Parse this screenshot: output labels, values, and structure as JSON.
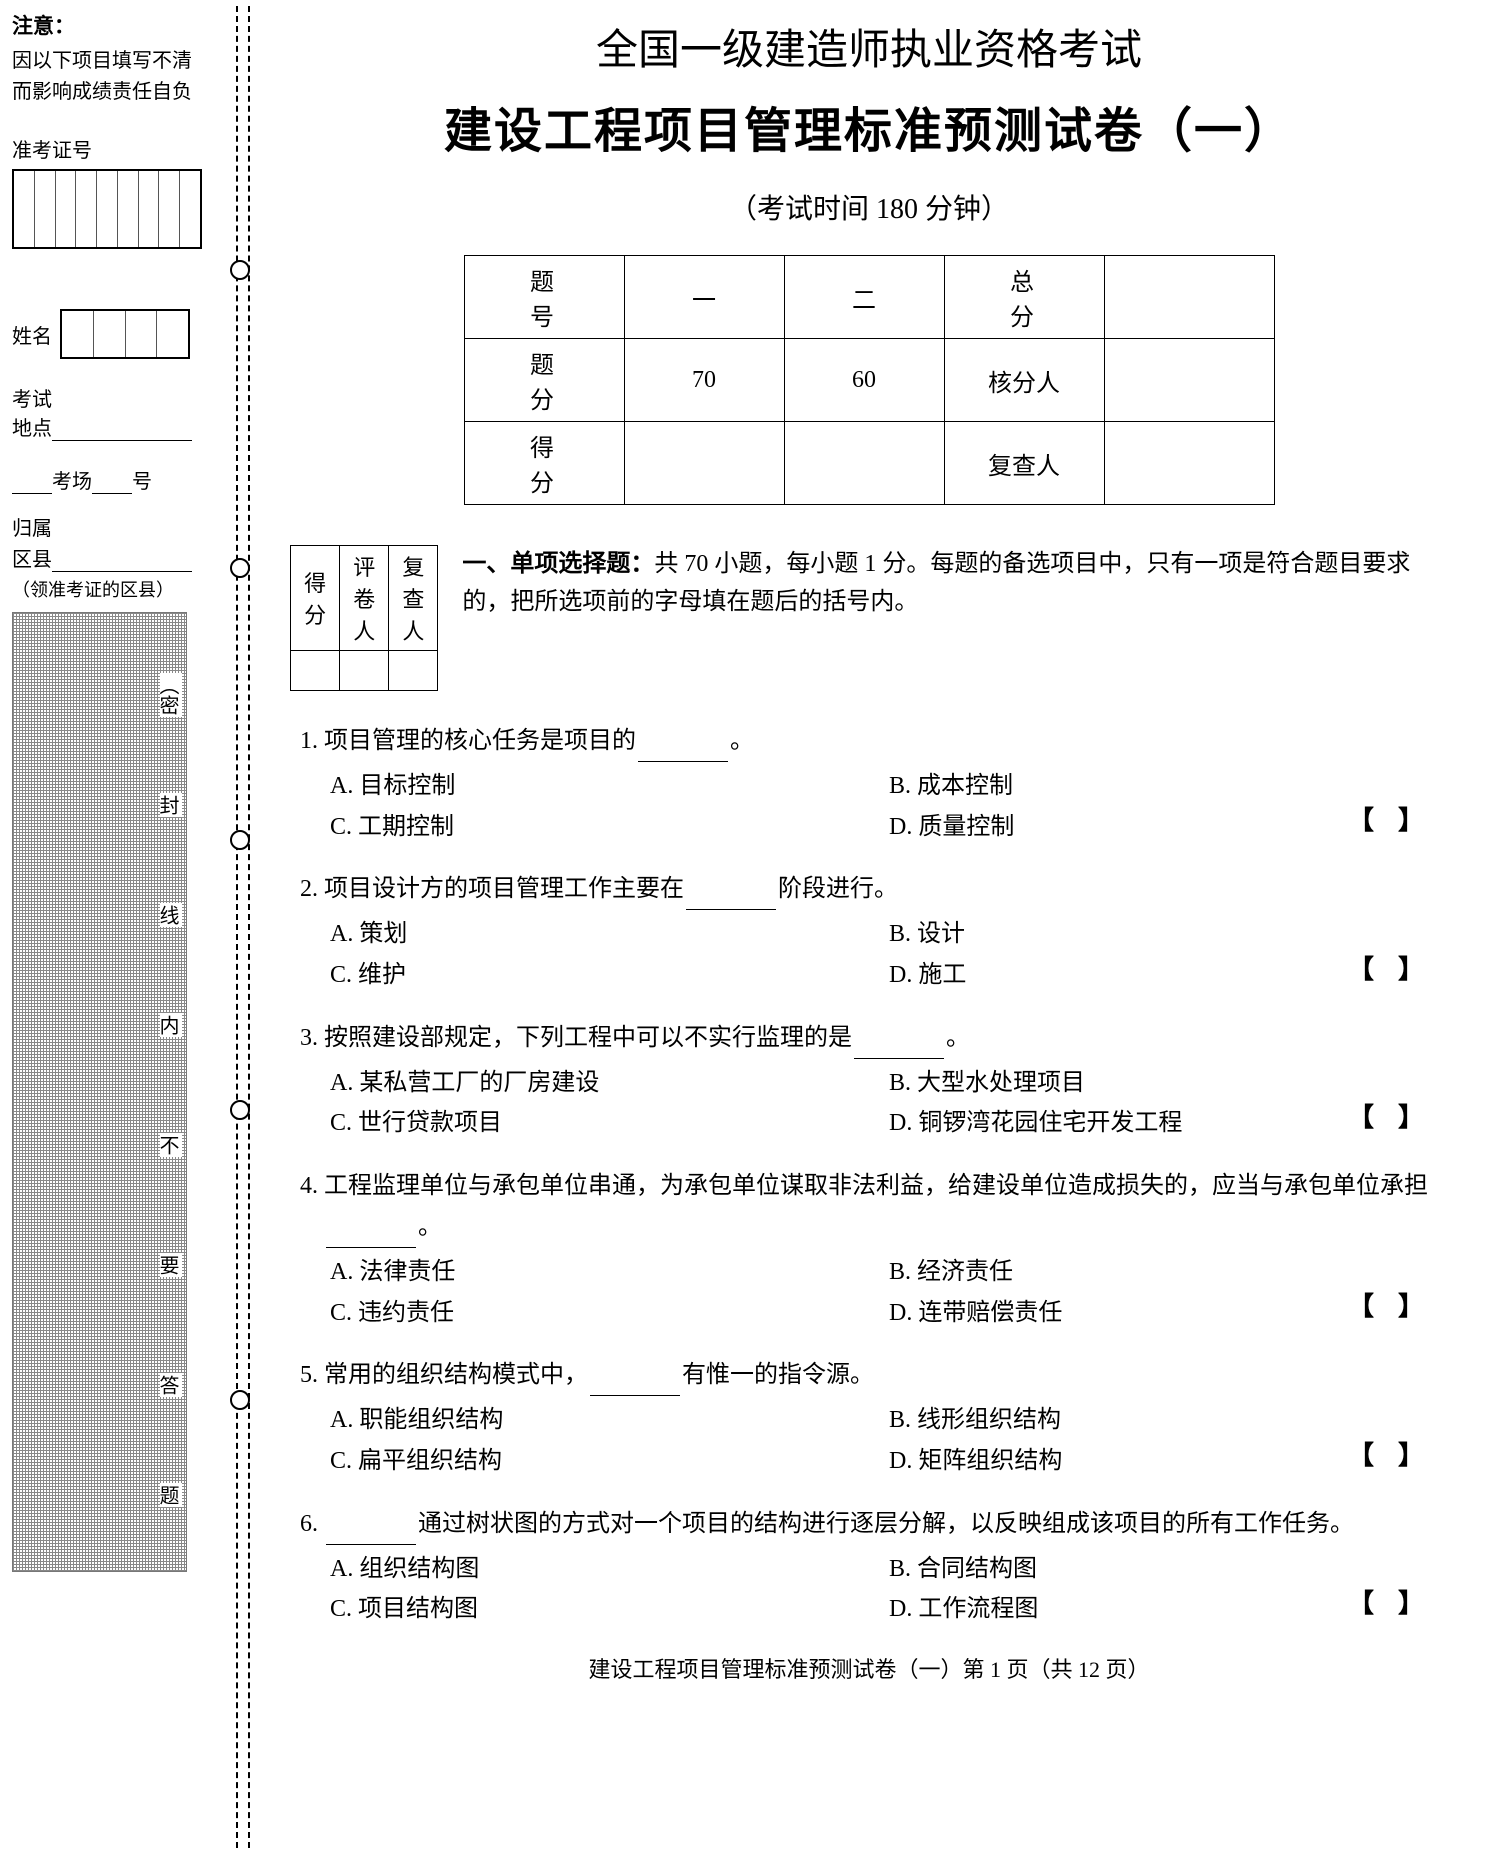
{
  "sidebar": {
    "notice_title": "注意：",
    "notice_l1": "因以下项目填写不清",
    "notice_l2": "而影响成绩责任自负",
    "ticket_label": "准考证号",
    "name_label": "姓名",
    "exam_place_label": "考试",
    "exam_place_label2": "地点",
    "room_label": "考场",
    "room_suffix": "号",
    "belong_label": "归属",
    "district_label": "区县",
    "region_note": "（领准考证的区县）",
    "vtext_top": "（密",
    "vchar1": "封",
    "vchar2": "线",
    "vchar3": "内",
    "vchar4": "不",
    "vchar5": "要",
    "vchar6": "答",
    "vchar7": "题"
  },
  "header": {
    "title1": "全国一级建造师执业资格考试",
    "title2": "建设工程项目管理标准预测试卷（一）",
    "subtitle": "（考试时间 180 分钟）"
  },
  "score_table": {
    "r1": [
      "题　号",
      "一",
      "二",
      "总　分",
      ""
    ],
    "r2": [
      "题　分",
      "70",
      "60",
      "核分人",
      ""
    ],
    "r3": [
      "得　分",
      "",
      "",
      "复查人",
      ""
    ]
  },
  "small_table": {
    "headers": [
      "得分",
      "评卷人",
      "复查人"
    ]
  },
  "section1": {
    "lead_bold": "一、单项选择题：",
    "lead_rest": "共 70 小题，每小题 1 分。每题的备选项目中，只有一项是符合题目要求的，把所选项前的字母填在题后的括号内。"
  },
  "questions": [
    {
      "num": "1.",
      "stem_pre": "项目管理的核心任务是项目的",
      "stem_post": "。",
      "opts": [
        "A. 目标控制",
        "B. 成本控制",
        "C. 工期控制",
        "D. 质量控制"
      ]
    },
    {
      "num": "2.",
      "stem_pre": "项目设计方的项目管理工作主要在",
      "stem_post": "阶段进行。",
      "opts": [
        "A. 策划",
        "B. 设计",
        "C. 维护",
        "D. 施工"
      ]
    },
    {
      "num": "3.",
      "stem_pre": "按照建设部规定，下列工程中可以不实行监理的是",
      "stem_post": "。",
      "opts": [
        "A. 某私营工厂的厂房建设",
        "B. 大型水处理项目",
        "C. 世行贷款项目",
        "D. 铜锣湾花园住宅开发工程"
      ]
    },
    {
      "num": "4.",
      "stem_pre": "工程监理单位与承包单位串通，为承包单位谋取非法利益，给建设单位造成损失的，应当与承包单位承担",
      "stem_post": "。",
      "opts": [
        "A. 法律责任",
        "B. 经济责任",
        "C. 违约责任",
        "D. 连带赔偿责任"
      ]
    },
    {
      "num": "5.",
      "stem_pre": "常用的组织结构模式中，",
      "stem_post": "有惟一的指令源。",
      "opts": [
        "A. 职能组织结构",
        "B. 线形组织结构",
        "C. 扁平组织结构",
        "D. 矩阵组织结构"
      ]
    },
    {
      "num": "6.",
      "stem_pre": "",
      "stem_post": "通过树状图的方式对一个项目的结构进行逐层分解，以反映组成该项目的所有工作任务。",
      "opts": [
        "A. 组织结构图",
        "B. 合同结构图",
        "C. 项目结构图",
        "D. 工作流程图"
      ]
    }
  ],
  "footer": "建设工程项目管理标准预测试卷（一）第 1 页（共 12 页）"
}
